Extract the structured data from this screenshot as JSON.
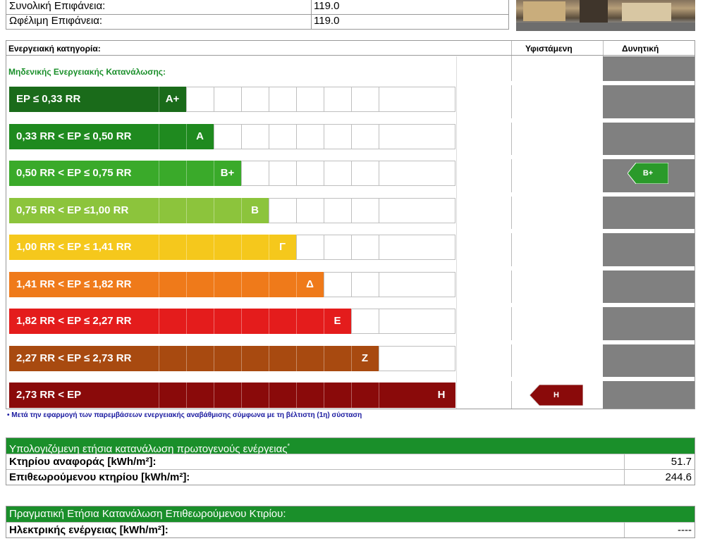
{
  "top": {
    "total_area_label": "Συνολική Επιφάνεια:",
    "total_area_value": "119.0",
    "useful_area_label": "Ωφέλιμη Επιφάνεια:",
    "useful_area_value": "119.0"
  },
  "rating": {
    "header_category": "Ενεργειακή κατηγορία:",
    "header_existing": "Υφιστάμενη",
    "header_potential": "Δυνητική",
    "zero_consumption_label": "Μηδενικής Ενεργειακής Κατανάλωσης:",
    "bands": [
      {
        "range": "EP ≤ 0,33 RR",
        "letter": "A+",
        "color": "#1a6b1a"
      },
      {
        "range": "0,33 RR < EP ≤ 0,50 RR",
        "letter": "A",
        "color": "#1f8a1f"
      },
      {
        "range": "0,50 RR < EP ≤ 0,75 RR",
        "letter": "B+",
        "color": "#3aaa2a"
      },
      {
        "range": "0,75 RR < EP ≤1,00 RR",
        "letter": "B",
        "color": "#8cc43c"
      },
      {
        "range": "1,00 RR < EP ≤ 1,41 RR",
        "letter": "Γ",
        "color": "#f5c81c"
      },
      {
        "range": "1,41 RR < EP ≤ 1,82 RR",
        "letter": "Δ",
        "color": "#ef7a1a"
      },
      {
        "range": "1,82 RR < EP ≤ 2,27 RR",
        "letter": "Ε",
        "color": "#e41c1c"
      },
      {
        "range": "2,27 RR <  EP ≤  2,73 RR",
        "letter": "Ζ",
        "color": "#a84a10"
      },
      {
        "range": "2,73 RR < EP",
        "letter": "Η",
        "color": "#8a0a0a"
      }
    ],
    "existing_class": "Η",
    "potential_class": "B+",
    "footnote": "• Μετά την εφαρμογή των παρεμβάσεων ενεργειακής αναβάθμισης σύμφωνα με τη βέλτιστη (1η) σύσταση"
  },
  "calculated": {
    "title": "Υπολογιζόμενη ετήσια κατανάλωση πρωτογενούς ενέργειας",
    "title_mark": "*",
    "reference_label": "Κτηρίου αναφοράς [kWh/m²]:",
    "reference_value": "51.7",
    "inspected_label": "Επιθεωρούμενου κτηρίου [kWh/m²]:",
    "inspected_value": "244.6"
  },
  "actual": {
    "title": "Πραγματική Ετήσια Κατανάλωση Επιθεωρούμενου Κτιρίου:",
    "electric_label": "Ηλεκτρικής ενέργειας [kWh/m²]:",
    "electric_value": "----"
  },
  "colors": {
    "section_green": "#1a8f2a",
    "existing_arrow": "#8a0a0a",
    "potential_arrow": "#2a9a2a",
    "potential_column": "#808080"
  }
}
